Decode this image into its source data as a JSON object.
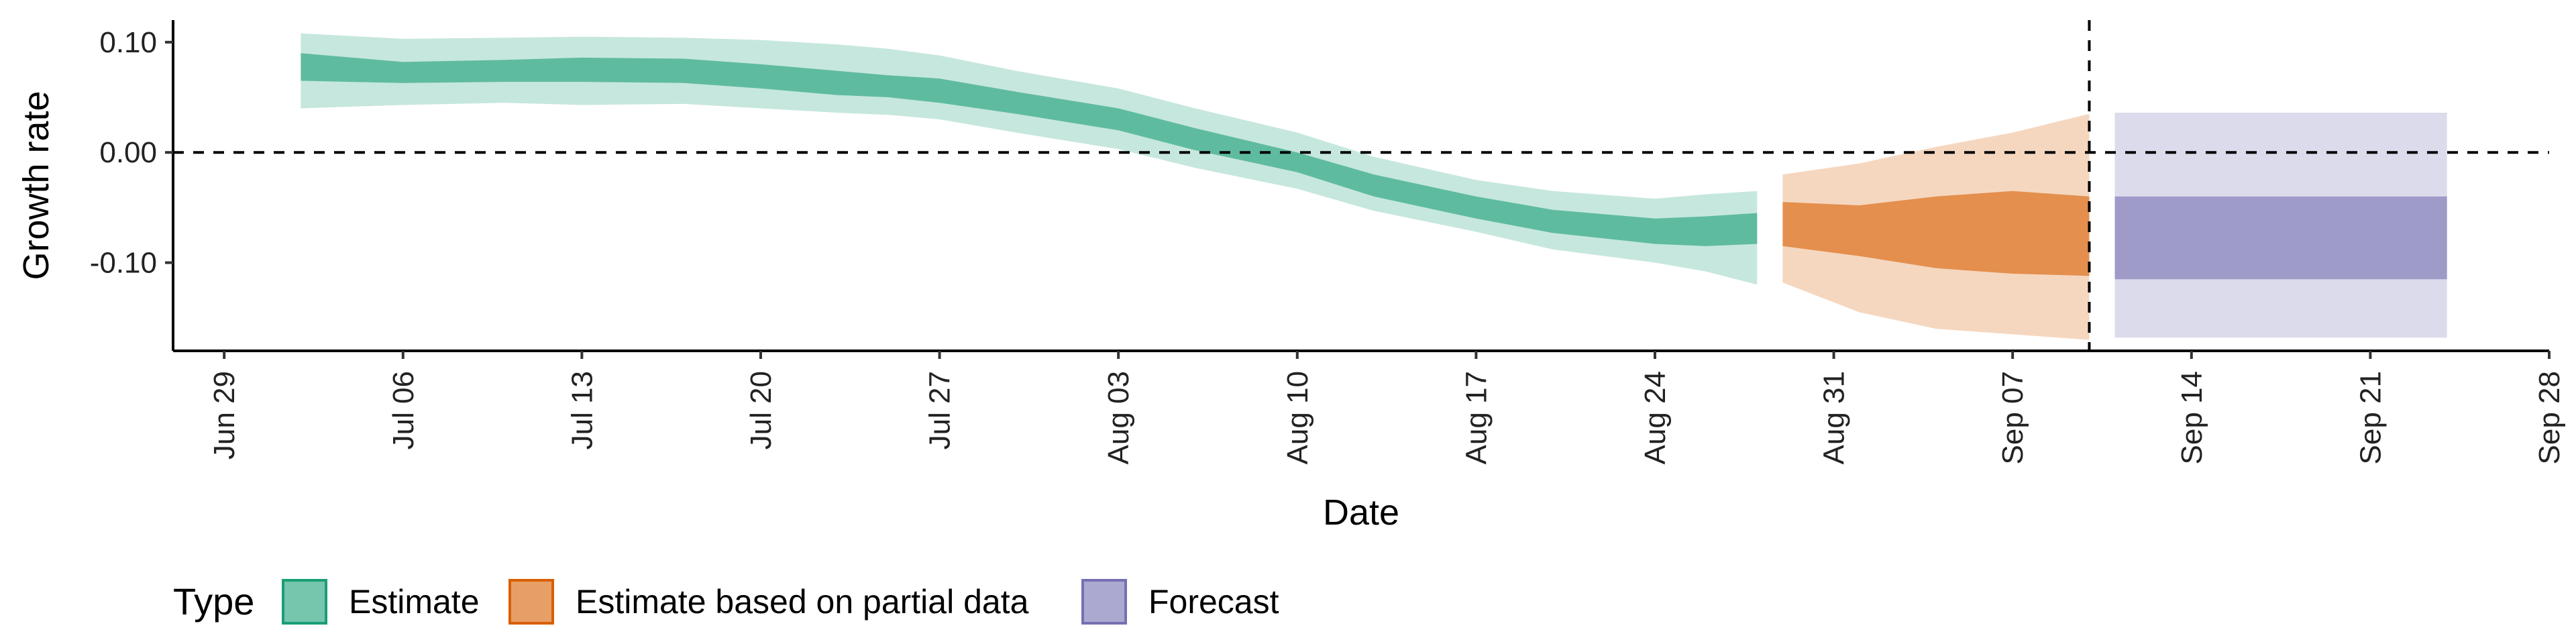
{
  "chart_data": {
    "type": "area",
    "xlabel": "Date",
    "ylabel": "Growth rate",
    "x_axis_type": "date",
    "xlim": [
      "2020-06-27",
      "2020-09-28"
    ],
    "ylim": [
      -0.18,
      0.12
    ],
    "x_ticks": [
      {
        "date": "2020-06-29",
        "label": "Jun 29"
      },
      {
        "date": "2020-07-06",
        "label": "Jul 06"
      },
      {
        "date": "2020-07-13",
        "label": "Jul 13"
      },
      {
        "date": "2020-07-20",
        "label": "Jul 20"
      },
      {
        "date": "2020-07-27",
        "label": "Jul 27"
      },
      {
        "date": "2020-08-03",
        "label": "Aug 03"
      },
      {
        "date": "2020-08-10",
        "label": "Aug 10"
      },
      {
        "date": "2020-08-17",
        "label": "Aug 17"
      },
      {
        "date": "2020-08-24",
        "label": "Aug 24"
      },
      {
        "date": "2020-08-31",
        "label": "Aug 31"
      },
      {
        "date": "2020-09-07",
        "label": "Sep 07"
      },
      {
        "date": "2020-09-14",
        "label": "Sep 14"
      },
      {
        "date": "2020-09-21",
        "label": "Sep 21"
      },
      {
        "date": "2020-09-28",
        "label": "Sep 28"
      }
    ],
    "y_ticks": [
      {
        "value": 0.1,
        "label": "0.10"
      },
      {
        "value": 0.0,
        "label": "0.00"
      },
      {
        "value": -0.1,
        "label": "-0.10"
      }
    ],
    "reference_lines": [
      {
        "axis": "y",
        "value": 0.0,
        "style": "dashed"
      },
      {
        "axis": "x",
        "value": "2020-09-10",
        "style": "dashed"
      }
    ],
    "grid": false,
    "legend": {
      "title": "Type",
      "placement": "bottom",
      "entries": [
        {
          "label": "Estimate",
          "color": "#1b9e77"
        },
        {
          "label": "Estimate based on partial data",
          "color": "#d95f02"
        },
        {
          "label": "Forecast",
          "color": "#7570b3"
        }
      ]
    },
    "series": [
      {
        "name": "Estimate",
        "color": "#1b9e77",
        "x": [
          "2020-07-02",
          "2020-07-06",
          "2020-07-10",
          "2020-07-13",
          "2020-07-17",
          "2020-07-20",
          "2020-07-23",
          "2020-07-25",
          "2020-07-27",
          "2020-07-30",
          "2020-08-03",
          "2020-08-06",
          "2020-08-10",
          "2020-08-13",
          "2020-08-17",
          "2020-08-20",
          "2020-08-24",
          "2020-08-26",
          "2020-08-28"
        ],
        "lower90": [
          0.04,
          0.043,
          0.045,
          0.043,
          0.044,
          0.04,
          0.036,
          0.034,
          0.03,
          0.018,
          0.003,
          -0.014,
          -0.033,
          -0.053,
          -0.072,
          -0.088,
          -0.1,
          -0.108,
          -0.12
        ],
        "lower50": [
          0.065,
          0.063,
          0.064,
          0.064,
          0.063,
          0.058,
          0.052,
          0.05,
          0.045,
          0.035,
          0.02,
          0.002,
          -0.018,
          -0.04,
          -0.06,
          -0.073,
          -0.083,
          -0.085,
          -0.083
        ],
        "upper50": [
          0.09,
          0.082,
          0.084,
          0.086,
          0.085,
          0.08,
          0.074,
          0.07,
          0.067,
          0.055,
          0.04,
          0.022,
          0.0,
          -0.02,
          -0.04,
          -0.052,
          -0.06,
          -0.058,
          -0.055
        ],
        "upper90": [
          0.108,
          0.103,
          0.104,
          0.105,
          0.104,
          0.102,
          0.098,
          0.094,
          0.088,
          0.074,
          0.058,
          0.04,
          0.018,
          -0.004,
          -0.025,
          -0.035,
          -0.042,
          -0.038,
          -0.035
        ]
      },
      {
        "name": "Estimate based on partial data",
        "color": "#d95f02",
        "x": [
          "2020-08-29",
          "2020-09-01",
          "2020-09-04",
          "2020-09-07",
          "2020-09-10"
        ],
        "lower90": [
          -0.118,
          -0.145,
          -0.16,
          -0.165,
          -0.17
        ],
        "lower50": [
          -0.085,
          -0.094,
          -0.105,
          -0.11,
          -0.112
        ],
        "upper50": [
          -0.045,
          -0.048,
          -0.04,
          -0.035,
          -0.04
        ],
        "upper90": [
          -0.02,
          -0.01,
          0.005,
          0.018,
          0.035
        ]
      },
      {
        "name": "Forecast",
        "color": "#7570b3",
        "x": [
          "2020-09-11",
          "2020-09-24"
        ],
        "lower90": [
          -0.168,
          -0.168
        ],
        "lower50": [
          -0.115,
          -0.115
        ],
        "upper50": [
          -0.04,
          -0.04
        ],
        "upper90": [
          0.036,
          0.036
        ]
      }
    ]
  }
}
